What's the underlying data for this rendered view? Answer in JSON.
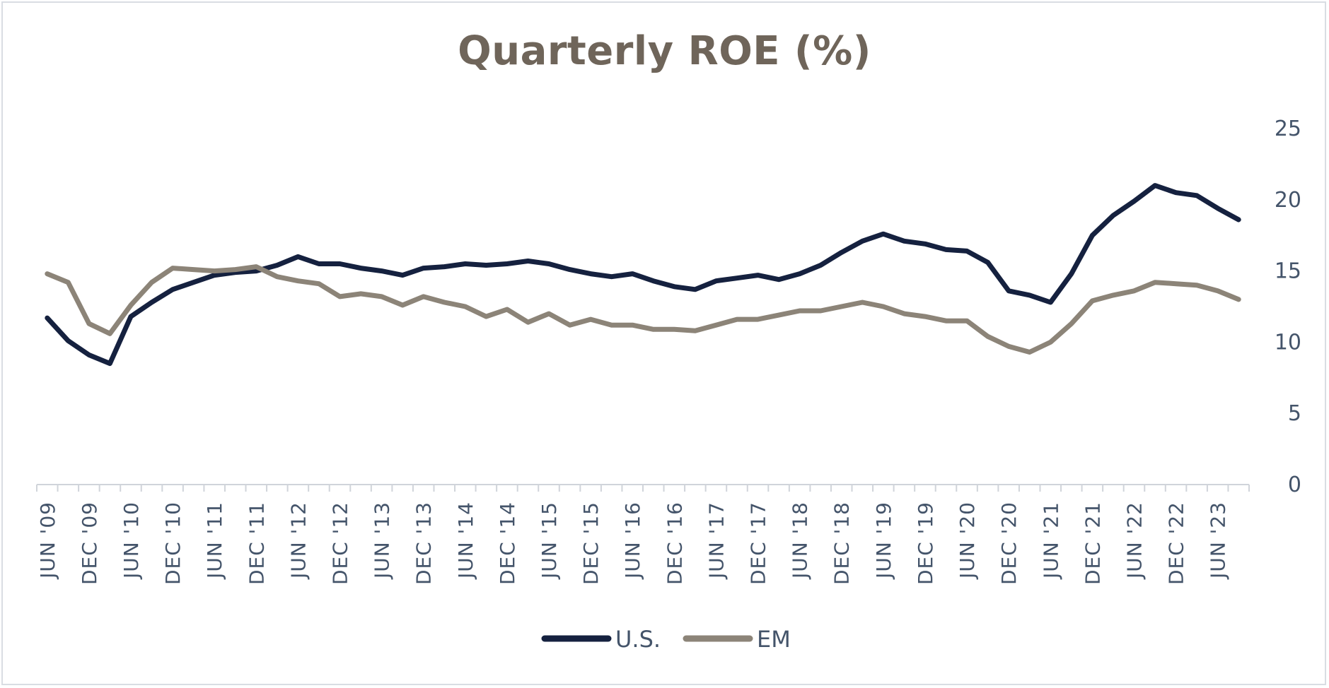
{
  "chart_data": {
    "type": "line",
    "title": "Quarterly ROE (%)",
    "xlabel": "",
    "ylabel": "",
    "ylim": [
      0,
      25
    ],
    "yticks": [
      0,
      5,
      10,
      15,
      20,
      25
    ],
    "y_axis_position": "right",
    "grid": false,
    "legend_position": "bottom",
    "tick_labels": [
      "JUN '09",
      "DEC '09",
      "JUN '10",
      "DEC '10",
      "JUN '11",
      "DEC '11",
      "JUN '12",
      "DEC '12",
      "JUN '13",
      "DEC '13",
      "JUN '14",
      "DEC '14",
      "JUN '15",
      "DEC '15",
      "JUN '16",
      "DEC '16",
      "JUN '17",
      "DEC '17",
      "JUN '18",
      "DEC '18",
      "JUN '19",
      "DEC '19",
      "JUN '20",
      "DEC '20",
      "JUN '21",
      "DEC '21",
      "JUN '22",
      "DEC '22",
      "JUN '23"
    ],
    "categories": [
      "JUN '09",
      "SEP '09",
      "DEC '09",
      "MAR '10",
      "JUN '10",
      "SEP '10",
      "DEC '10",
      "MAR '11",
      "JUN '11",
      "SEP '11",
      "DEC '11",
      "MAR '12",
      "JUN '12",
      "SEP '12",
      "DEC '12",
      "MAR '13",
      "JUN '13",
      "SEP '13",
      "DEC '13",
      "MAR '14",
      "JUN '14",
      "SEP '14",
      "DEC '14",
      "MAR '15",
      "JUN '15",
      "SEP '15",
      "DEC '15",
      "MAR '16",
      "JUN '16",
      "SEP '16",
      "DEC '16",
      "MAR '17",
      "JUN '17",
      "SEP '17",
      "DEC '17",
      "MAR '18",
      "JUN '18",
      "SEP '18",
      "DEC '18",
      "MAR '19",
      "JUN '19",
      "SEP '19",
      "DEC '19",
      "MAR '20",
      "JUN '20",
      "SEP '20",
      "DEC '20",
      "MAR '21",
      "JUN '21",
      "SEP '21",
      "DEC '21",
      "MAR '22",
      "JUN '22",
      "SEP '22",
      "DEC '22",
      "MAR '23",
      "JUN '23",
      "SEP '23"
    ],
    "series": [
      {
        "name": "U.S.",
        "color": "#15213f",
        "values": [
          11.7,
          10.1,
          9.1,
          8.5,
          11.8,
          12.8,
          13.7,
          14.2,
          14.7,
          14.9,
          15.0,
          15.4,
          16.0,
          15.5,
          15.5,
          15.2,
          15.0,
          14.7,
          15.2,
          15.3,
          15.5,
          15.4,
          15.5,
          15.7,
          15.5,
          15.1,
          14.8,
          14.6,
          14.8,
          14.3,
          13.9,
          13.7,
          14.3,
          14.5,
          14.7,
          14.4,
          14.8,
          15.4,
          16.3,
          17.1,
          17.6,
          17.1,
          16.9,
          16.5,
          16.4,
          15.6,
          13.6,
          13.3,
          12.8,
          14.8,
          17.5,
          18.9,
          19.9,
          21.0,
          20.5,
          20.3,
          19.4,
          18.6
        ]
      },
      {
        "name": "EM",
        "color": "#8c8478",
        "values": [
          14.8,
          14.2,
          11.3,
          10.6,
          12.6,
          14.2,
          15.2,
          15.1,
          15.0,
          15.1,
          15.3,
          14.6,
          14.3,
          14.1,
          13.2,
          13.4,
          13.2,
          12.6,
          13.2,
          12.8,
          12.5,
          11.8,
          12.3,
          11.4,
          12.0,
          11.2,
          11.6,
          11.2,
          11.2,
          10.9,
          10.9,
          10.8,
          11.2,
          11.6,
          11.6,
          11.9,
          12.2,
          12.2,
          12.5,
          12.8,
          12.5,
          12.0,
          11.8,
          11.5,
          11.5,
          10.4,
          9.7,
          9.3,
          10.0,
          11.3,
          12.9,
          13.3,
          13.6,
          14.2,
          14.1,
          14.0,
          13.6,
          13.0
        ]
      }
    ]
  }
}
